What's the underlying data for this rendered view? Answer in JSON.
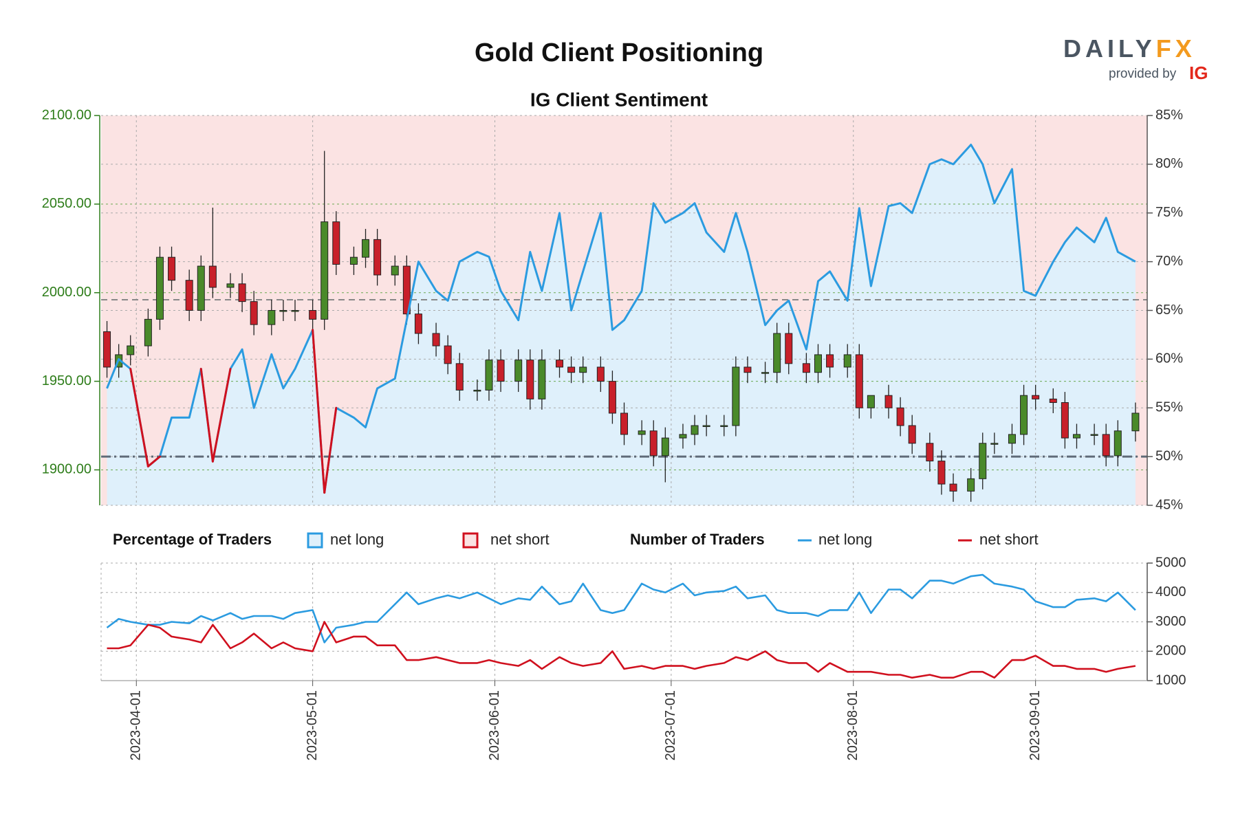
{
  "logo": {
    "brand": "DAILY",
    "brand_accent": "FX",
    "provided_by": "provided by",
    "ig": "IG"
  },
  "chart_data": [
    {
      "type": "candlestick",
      "title": "Gold Client Positioning",
      "subtitle": "IG Client Sentiment",
      "x": [
        "2023-03-27",
        "2023-03-29",
        "2023-03-31",
        "2023-04-03",
        "2023-04-05",
        "2023-04-07",
        "2023-04-10",
        "2023-04-12",
        "2023-04-14",
        "2023-04-17",
        "2023-04-19",
        "2023-04-21",
        "2023-04-24",
        "2023-04-26",
        "2023-04-28",
        "2023-05-01",
        "2023-05-03",
        "2023-05-05",
        "2023-05-08",
        "2023-05-10",
        "2023-05-12",
        "2023-05-15",
        "2023-05-17",
        "2023-05-19",
        "2023-05-22",
        "2023-05-24",
        "2023-05-26",
        "2023-05-29",
        "2023-05-31",
        "2023-06-02",
        "2023-06-05",
        "2023-06-07",
        "2023-06-09",
        "2023-06-12",
        "2023-06-14",
        "2023-06-16",
        "2023-06-19",
        "2023-06-21",
        "2023-06-23",
        "2023-06-26",
        "2023-06-28",
        "2023-06-30",
        "2023-07-03",
        "2023-07-05",
        "2023-07-07",
        "2023-07-10",
        "2023-07-12",
        "2023-07-14",
        "2023-07-17",
        "2023-07-19",
        "2023-07-21",
        "2023-07-24",
        "2023-07-26",
        "2023-07-28",
        "2023-07-31",
        "2023-08-02",
        "2023-08-04",
        "2023-08-07",
        "2023-08-09",
        "2023-08-11",
        "2023-08-14",
        "2023-08-16",
        "2023-08-18",
        "2023-08-21",
        "2023-08-23",
        "2023-08-25",
        "2023-08-28",
        "2023-08-30",
        "2023-09-01",
        "2023-09-04",
        "2023-09-06",
        "2023-09-08",
        "2023-09-11",
        "2023-09-13",
        "2023-09-15",
        "2023-09-18"
      ],
      "open": [
        1978,
        1958,
        1965,
        1970,
        1985,
        2020,
        2007,
        1990,
        2015,
        2003,
        2005,
        1995,
        1982,
        1990,
        1990,
        1990,
        1985,
        2040,
        2016,
        2020,
        2030,
        2010,
        2015,
        1988,
        1977,
        1970,
        1960,
        1945,
        1945,
        1962,
        1950,
        1962,
        1940,
        1962,
        1958,
        1955,
        1958,
        1950,
        1932,
        1920,
        1922,
        1908,
        1918,
        1920,
        1925,
        1925,
        1925,
        1958,
        1955,
        1955,
        1977,
        1960,
        1955,
        1965,
        1958,
        1965,
        1935,
        1942,
        1935,
        1925,
        1915,
        1905,
        1892,
        1888,
        1895,
        1915,
        1915,
        1920,
        1942,
        1940,
        1938,
        1918,
        1920,
        1920,
        1908,
        1922
      ],
      "high": [
        1984,
        1971,
        1976,
        1991,
        2026,
        2026,
        2013,
        2021,
        2048,
        2011,
        2011,
        2001,
        1996,
        1996,
        1996,
        1996,
        2080,
        2046,
        2026,
        2036,
        2036,
        2021,
        2021,
        1994,
        1983,
        1976,
        1966,
        1951,
        1968,
        1968,
        1968,
        1968,
        1968,
        1968,
        1964,
        1964,
        1964,
        1956,
        1938,
        1928,
        1928,
        1924,
        1926,
        1931,
        1931,
        1931,
        1964,
        1964,
        1961,
        1983,
        1983,
        1966,
        1971,
        1971,
        1971,
        1971,
        1941,
        1948,
        1941,
        1931,
        1921,
        1911,
        1898,
        1901,
        1921,
        1921,
        1926,
        1948,
        1948,
        1946,
        1944,
        1926,
        1926,
        1926,
        1928,
        1938
      ],
      "low": [
        1952,
        1952,
        1959,
        1964,
        1979,
        2001,
        1984,
        1984,
        1997,
        1997,
        1989,
        1976,
        1976,
        1984,
        1984,
        1979,
        1979,
        2010,
        2010,
        2014,
        2004,
        2004,
        1982,
        1971,
        1964,
        1954,
        1939,
        1939,
        1939,
        1944,
        1944,
        1934,
        1934,
        1952,
        1949,
        1949,
        1944,
        1926,
        1914,
        1914,
        1902,
        1893,
        1912,
        1914,
        1919,
        1919,
        1919,
        1949,
        1949,
        1949,
        1954,
        1949,
        1949,
        1952,
        1952,
        1929,
        1929,
        1929,
        1919,
        1909,
        1899,
        1886,
        1882,
        1882,
        1889,
        1909,
        1909,
        1914,
        1934,
        1932,
        1912,
        1912,
        1914,
        1902,
        1902,
        1916
      ],
      "close": [
        1958,
        1965,
        1970,
        1985,
        2020,
        2007,
        1990,
        2015,
        2003,
        2005,
        1995,
        1982,
        1990,
        1990,
        1990,
        1985,
        2040,
        2016,
        2020,
        2030,
        2010,
        2015,
        1988,
        1977,
        1970,
        1960,
        1945,
        1945,
        1962,
        1950,
        1962,
        1940,
        1962,
        1958,
        1955,
        1958,
        1950,
        1932,
        1920,
        1922,
        1908,
        1918,
        1920,
        1925,
        1925,
        1925,
        1958,
        1955,
        1955,
        1977,
        1960,
        1955,
        1965,
        1958,
        1965,
        1935,
        1942,
        1935,
        1925,
        1915,
        1905,
        1892,
        1888,
        1895,
        1915,
        1915,
        1920,
        1942,
        1940,
        1938,
        1918,
        1920,
        1920,
        1908,
        1922,
        1932
      ],
      "up_color": "#4a8a2a",
      "down_color": "#c8202a",
      "net_long_pct": [
        57,
        60,
        59,
        49,
        50,
        54,
        54,
        59,
        49.5,
        59,
        61,
        55,
        60.5,
        57,
        59,
        63,
        46.3,
        55,
        54,
        53,
        57,
        58,
        64,
        70,
        67,
        66,
        70,
        71,
        70.5,
        67,
        64,
        71,
        67,
        75,
        65,
        69,
        75,
        63,
        64,
        67,
        76,
        74,
        75,
        76,
        73,
        71,
        75,
        71,
        63.5,
        65,
        66,
        61,
        68,
        69,
        66,
        75.5,
        67.5,
        75.7,
        76,
        75,
        80,
        80.5,
        80,
        82,
        80,
        76,
        79.5,
        67,
        66.5,
        70,
        72,
        73.5,
        72,
        74.5,
        71,
        70
      ],
      "xlim": [
        "2023-03-26",
        "2023-09-20"
      ],
      "ylim": [
        1880,
        2100
      ],
      "yticks": [
        {
          "value": 1900,
          "label": "1900.00"
        },
        {
          "value": 1950,
          "label": "1950.00"
        },
        {
          "value": 2000,
          "label": "2000.00"
        },
        {
          "value": 2050,
          "label": "2050.00"
        },
        {
          "value": 2100,
          "label": "2100.00"
        }
      ],
      "y2lim": [
        45,
        85
      ],
      "y2ticks": [
        {
          "value": 45,
          "label": "45%"
        },
        {
          "value": 50,
          "label": "50%"
        },
        {
          "value": 55,
          "label": "55%"
        },
        {
          "value": 60,
          "label": "60%"
        },
        {
          "value": 65,
          "label": "65%"
        },
        {
          "value": 70,
          "label": "70%"
        },
        {
          "value": 75,
          "label": "75%"
        },
        {
          "value": 80,
          "label": "80%"
        },
        {
          "value": 85,
          "label": "85%"
        }
      ],
      "reference_lines": [
        {
          "value": 1996,
          "axis": "y"
        },
        {
          "value": 50,
          "axis": "y2"
        }
      ],
      "grid": true,
      "legend_title": "Percentage of Traders",
      "legend": [
        {
          "name": "net long",
          "color": "#2b9be0",
          "fill": "#dff0fb"
        },
        {
          "name": "net short",
          "color": "#d0101e",
          "fill": "#fbe3e3"
        }
      ]
    },
    {
      "type": "line",
      "legend_title": "Number of Traders",
      "x": [
        "2023-03-27",
        "2023-03-29",
        "2023-03-31",
        "2023-04-03",
        "2023-04-05",
        "2023-04-07",
        "2023-04-10",
        "2023-04-12",
        "2023-04-14",
        "2023-04-17",
        "2023-04-19",
        "2023-04-21",
        "2023-04-24",
        "2023-04-26",
        "2023-04-28",
        "2023-05-01",
        "2023-05-03",
        "2023-05-05",
        "2023-05-08",
        "2023-05-10",
        "2023-05-12",
        "2023-05-15",
        "2023-05-17",
        "2023-05-19",
        "2023-05-22",
        "2023-05-24",
        "2023-05-26",
        "2023-05-29",
        "2023-05-31",
        "2023-06-02",
        "2023-06-05",
        "2023-06-07",
        "2023-06-09",
        "2023-06-12",
        "2023-06-14",
        "2023-06-16",
        "2023-06-19",
        "2023-06-21",
        "2023-06-23",
        "2023-06-26",
        "2023-06-28",
        "2023-06-30",
        "2023-07-03",
        "2023-07-05",
        "2023-07-07",
        "2023-07-10",
        "2023-07-12",
        "2023-07-14",
        "2023-07-17",
        "2023-07-19",
        "2023-07-21",
        "2023-07-24",
        "2023-07-26",
        "2023-07-28",
        "2023-07-31",
        "2023-08-02",
        "2023-08-04",
        "2023-08-07",
        "2023-08-09",
        "2023-08-11",
        "2023-08-14",
        "2023-08-16",
        "2023-08-18",
        "2023-08-21",
        "2023-08-23",
        "2023-08-25",
        "2023-08-28",
        "2023-08-30",
        "2023-09-01",
        "2023-09-04",
        "2023-09-06",
        "2023-09-08",
        "2023-09-11",
        "2023-09-13",
        "2023-09-15",
        "2023-09-18"
      ],
      "series": [
        {
          "name": "net long",
          "color": "#2b9be0",
          "values": [
            2800,
            3100,
            3000,
            2900,
            2900,
            3000,
            2950,
            3200,
            3050,
            3300,
            3100,
            3200,
            3200,
            3100,
            3300,
            3400,
            2300,
            2800,
            2900,
            3000,
            3000,
            3600,
            4000,
            3600,
            3800,
            3900,
            3800,
            4000,
            3800,
            3600,
            3800,
            3750,
            4200,
            3600,
            3700,
            4300,
            3400,
            3300,
            3400,
            4300,
            4100,
            4000,
            4300,
            3900,
            4000,
            4050,
            4200,
            3800,
            3900,
            3400,
            3300,
            3300,
            3200,
            3400,
            3400,
            4000,
            3300,
            4100,
            4100,
            3800,
            4400,
            4400,
            4300,
            4550,
            4600,
            4300,
            4200,
            4100,
            3700,
            3500,
            3500,
            3750,
            3800,
            3700,
            4000,
            3400
          ]
        },
        {
          "name": "net short",
          "color": "#d0101e",
          "values": [
            2100,
            2100,
            2200,
            2900,
            2800,
            2500,
            2400,
            2300,
            2900,
            2100,
            2300,
            2600,
            2100,
            2300,
            2100,
            2000,
            3000,
            2300,
            2500,
            2500,
            2200,
            2200,
            1700,
            1700,
            1800,
            1700,
            1600,
            1600,
            1700,
            1600,
            1500,
            1700,
            1400,
            1800,
            1600,
            1500,
            1600,
            2000,
            1400,
            1500,
            1400,
            1500,
            1500,
            1400,
            1500,
            1600,
            1800,
            1700,
            2000,
            1700,
            1600,
            1600,
            1300,
            1600,
            1300,
            1300,
            1300,
            1200,
            1200,
            1100,
            1200,
            1100,
            1100,
            1300,
            1300,
            1100,
            1700,
            1700,
            1850,
            1500,
            1500,
            1400,
            1400,
            1300,
            1400,
            1500
          ]
        }
      ],
      "xlim": [
        "2023-03-26",
        "2023-09-20"
      ],
      "xticks": [
        "2023-04-01",
        "2023-05-01",
        "2023-06-01",
        "2023-07-01",
        "2023-08-01",
        "2023-09-01"
      ],
      "ylim": [
        1000,
        5000
      ],
      "yticks": [
        1000,
        2000,
        3000,
        4000,
        5000
      ],
      "grid": true
    }
  ]
}
